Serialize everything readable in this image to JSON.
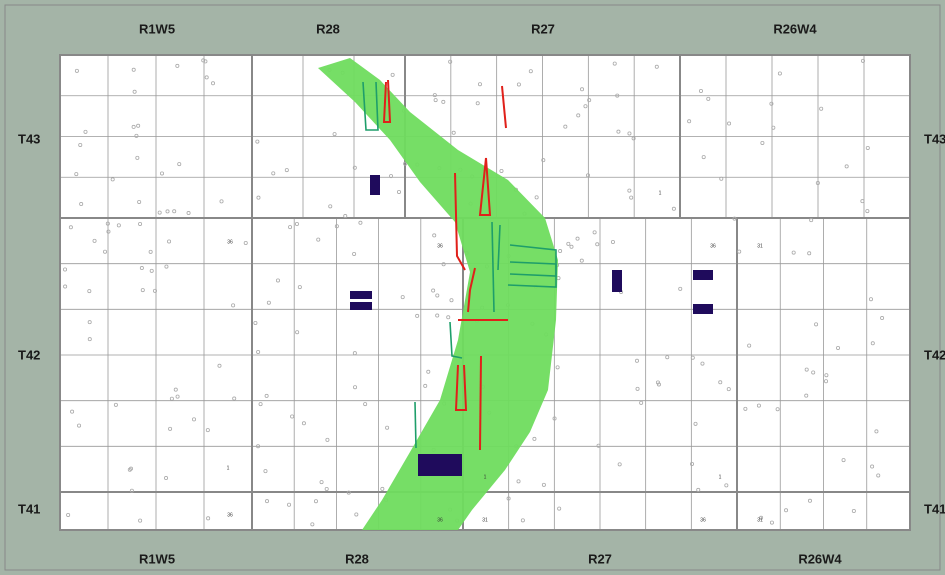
{
  "map": {
    "ranges_top": [
      "R1W5",
      "R28",
      "R27",
      "R26W4"
    ],
    "ranges_bottom": [
      "R1W5",
      "R28",
      "R27",
      "R26W4"
    ],
    "townships_left": [
      "T43",
      "T42",
      "T41"
    ],
    "townships_right": [
      "T43",
      "T42",
      "T41"
    ],
    "section_numbers": [
      "36",
      "36",
      "36",
      "31",
      "1",
      "1",
      "1",
      "1",
      "36",
      "36",
      "31",
      "36",
      "31"
    ]
  }
}
